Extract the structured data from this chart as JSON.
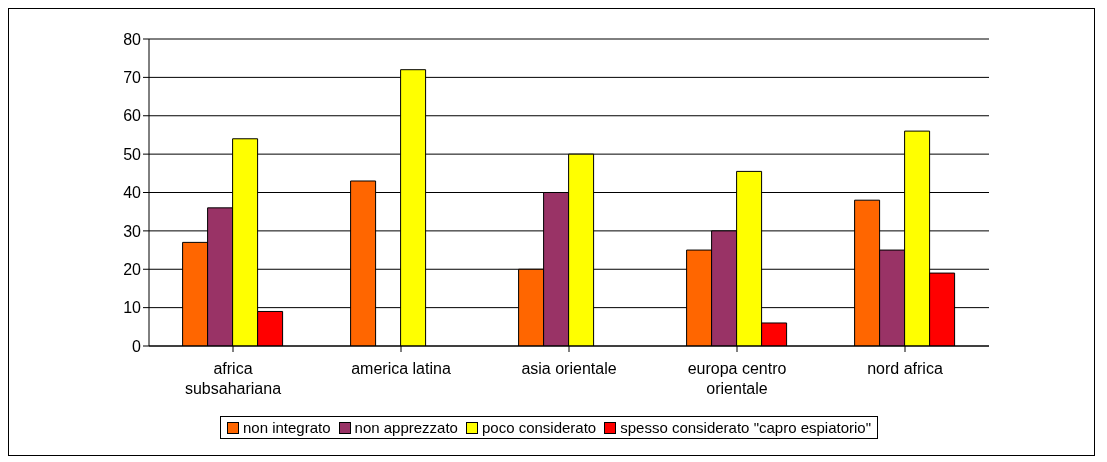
{
  "chart_data": {
    "type": "bar",
    "categories": [
      "africa subsahariana",
      "america latina",
      "asia orientale",
      "europa centro orientale",
      "nord africa"
    ],
    "series": [
      {
        "name": "non integrato",
        "color": "#ff6600",
        "values": [
          27,
          43,
          20,
          25,
          38
        ]
      },
      {
        "name": "non apprezzato",
        "color": "#993366",
        "values": [
          36,
          0,
          40,
          30,
          25
        ]
      },
      {
        "name": "poco considerato",
        "color": "#ffff00",
        "values": [
          54,
          72,
          50,
          45.5,
          56
        ]
      },
      {
        "name": "spesso considerato \"capro espiatorio\"",
        "color": "#ff0000",
        "values": [
          9,
          0,
          0,
          6,
          19
        ]
      }
    ],
    "ylim": [
      0,
      80
    ],
    "yticks": [
      0,
      10,
      20,
      30,
      40,
      50,
      60,
      70,
      80
    ],
    "grid": "y",
    "legend": "bottom"
  }
}
